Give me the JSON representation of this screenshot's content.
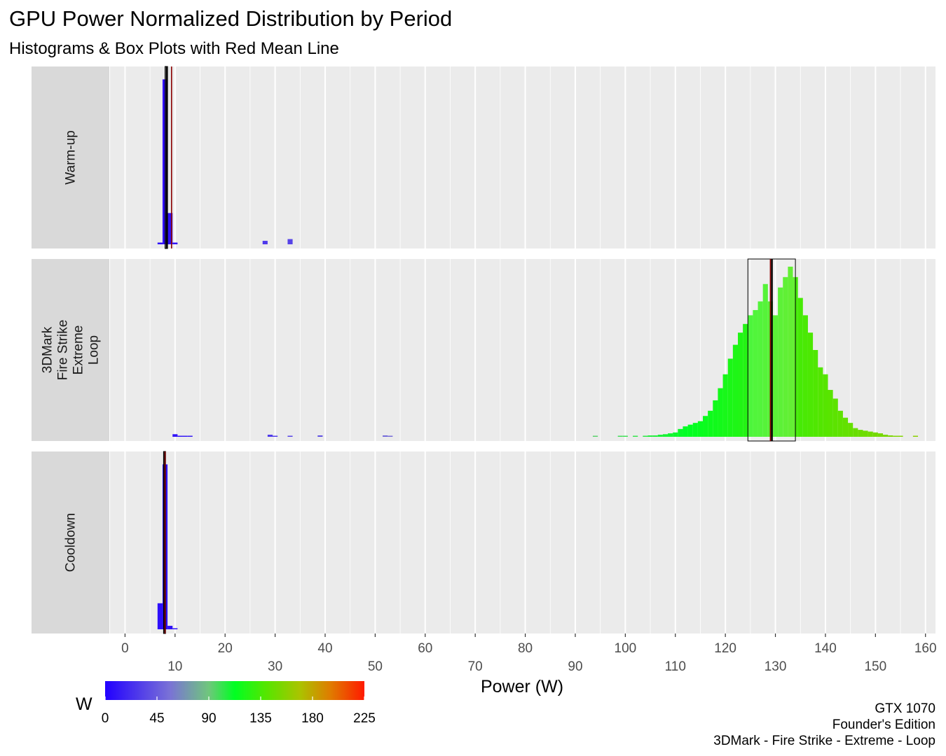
{
  "title": "GPU Power Normalized Distribution by Period",
  "subtitle": "Histograms & Box Plots with Red Mean Line",
  "caption": [
    "GTX 1070",
    "Founder's Edition",
    "3DMark - Fire Strike - Extreme - Loop"
  ],
  "legend": {
    "title": "W",
    "ticks": [
      0,
      45,
      90,
      135,
      180,
      225
    ],
    "range": [
      0,
      225
    ]
  },
  "chart_data": {
    "type": "histogram",
    "xlabel": "Power (W)",
    "ylabel": "",
    "xlim": [
      -3,
      162
    ],
    "x_ticks_row1": [
      0,
      20,
      40,
      60,
      80,
      100,
      120,
      140,
      160
    ],
    "x_ticks_row2": [
      10,
      30,
      50,
      70,
      90,
      110,
      130,
      150
    ],
    "bin_width": 1,
    "grid": true,
    "panels": [
      {
        "name": "Warm-up",
        "bins": [
          [
            7,
            0.01
          ],
          [
            8,
            0.95
          ],
          [
            9,
            0.18
          ],
          [
            10,
            0.01
          ],
          [
            28,
            0.02
          ],
          [
            33,
            0.03
          ]
        ],
        "box": {
          "q1": 8.0,
          "median": 8.3,
          "q3": 8.5
        },
        "mean": 9.3
      },
      {
        "name": "3DMark\nFire Strike\nExtreme\nLoop",
        "bins": [
          [
            10,
            0.015
          ],
          [
            11,
            0.005
          ],
          [
            12,
            0.005
          ],
          [
            13,
            0.005
          ],
          [
            29,
            0.012
          ],
          [
            30,
            0.005
          ],
          [
            33,
            0.006
          ],
          [
            39,
            0.008
          ],
          [
            52,
            0.008
          ],
          [
            53,
            0.005
          ],
          [
            94,
            0.006
          ],
          [
            99,
            0.005
          ],
          [
            100,
            0.005
          ],
          [
            102,
            0.005
          ],
          [
            104,
            0.006
          ],
          [
            105,
            0.008
          ],
          [
            106,
            0.008
          ],
          [
            107,
            0.012
          ],
          [
            108,
            0.015
          ],
          [
            109,
            0.02
          ],
          [
            110,
            0.025
          ],
          [
            111,
            0.045
          ],
          [
            112,
            0.06
          ],
          [
            113,
            0.07
          ],
          [
            114,
            0.08
          ],
          [
            115,
            0.09
          ],
          [
            116,
            0.12
          ],
          [
            117,
            0.15
          ],
          [
            118,
            0.21
          ],
          [
            119,
            0.28
          ],
          [
            120,
            0.36
          ],
          [
            121,
            0.45
          ],
          [
            122,
            0.53
          ],
          [
            123,
            0.6
          ],
          [
            124,
            0.65
          ],
          [
            125,
            0.7
          ],
          [
            126,
            0.73
          ],
          [
            127,
            0.78
          ],
          [
            128,
            0.88
          ],
          [
            129,
            0.78
          ],
          [
            130,
            0.7
          ],
          [
            131,
            0.86
          ],
          [
            132,
            0.92
          ],
          [
            133,
            0.98
          ],
          [
            134,
            0.92
          ],
          [
            135,
            0.8
          ],
          [
            136,
            0.7
          ],
          [
            137,
            0.6
          ],
          [
            138,
            0.5
          ],
          [
            139,
            0.4
          ],
          [
            140,
            0.36
          ],
          [
            141,
            0.27
          ],
          [
            142,
            0.22
          ],
          [
            143,
            0.15
          ],
          [
            144,
            0.11
          ],
          [
            145,
            0.08
          ],
          [
            146,
            0.05
          ],
          [
            147,
            0.04
          ],
          [
            148,
            0.035
          ],
          [
            149,
            0.03
          ],
          [
            150,
            0.025
          ],
          [
            151,
            0.02
          ],
          [
            152,
            0.012
          ],
          [
            153,
            0.008
          ],
          [
            154,
            0.006
          ],
          [
            155,
            0.005
          ],
          [
            158,
            0.005
          ]
        ],
        "box": {
          "q1": 124.5,
          "median": 129.3,
          "q3": 134.0
        },
        "mean": 129.0
      },
      {
        "name": "Cooldown",
        "bins": [
          [
            7,
            0.15
          ],
          [
            8,
            0.95
          ],
          [
            9,
            0.02
          ],
          [
            10,
            0.005
          ]
        ],
        "box": {
          "q1": 7.7,
          "median": 7.9,
          "q3": 8.1
        },
        "mean": 8.0
      }
    ]
  }
}
